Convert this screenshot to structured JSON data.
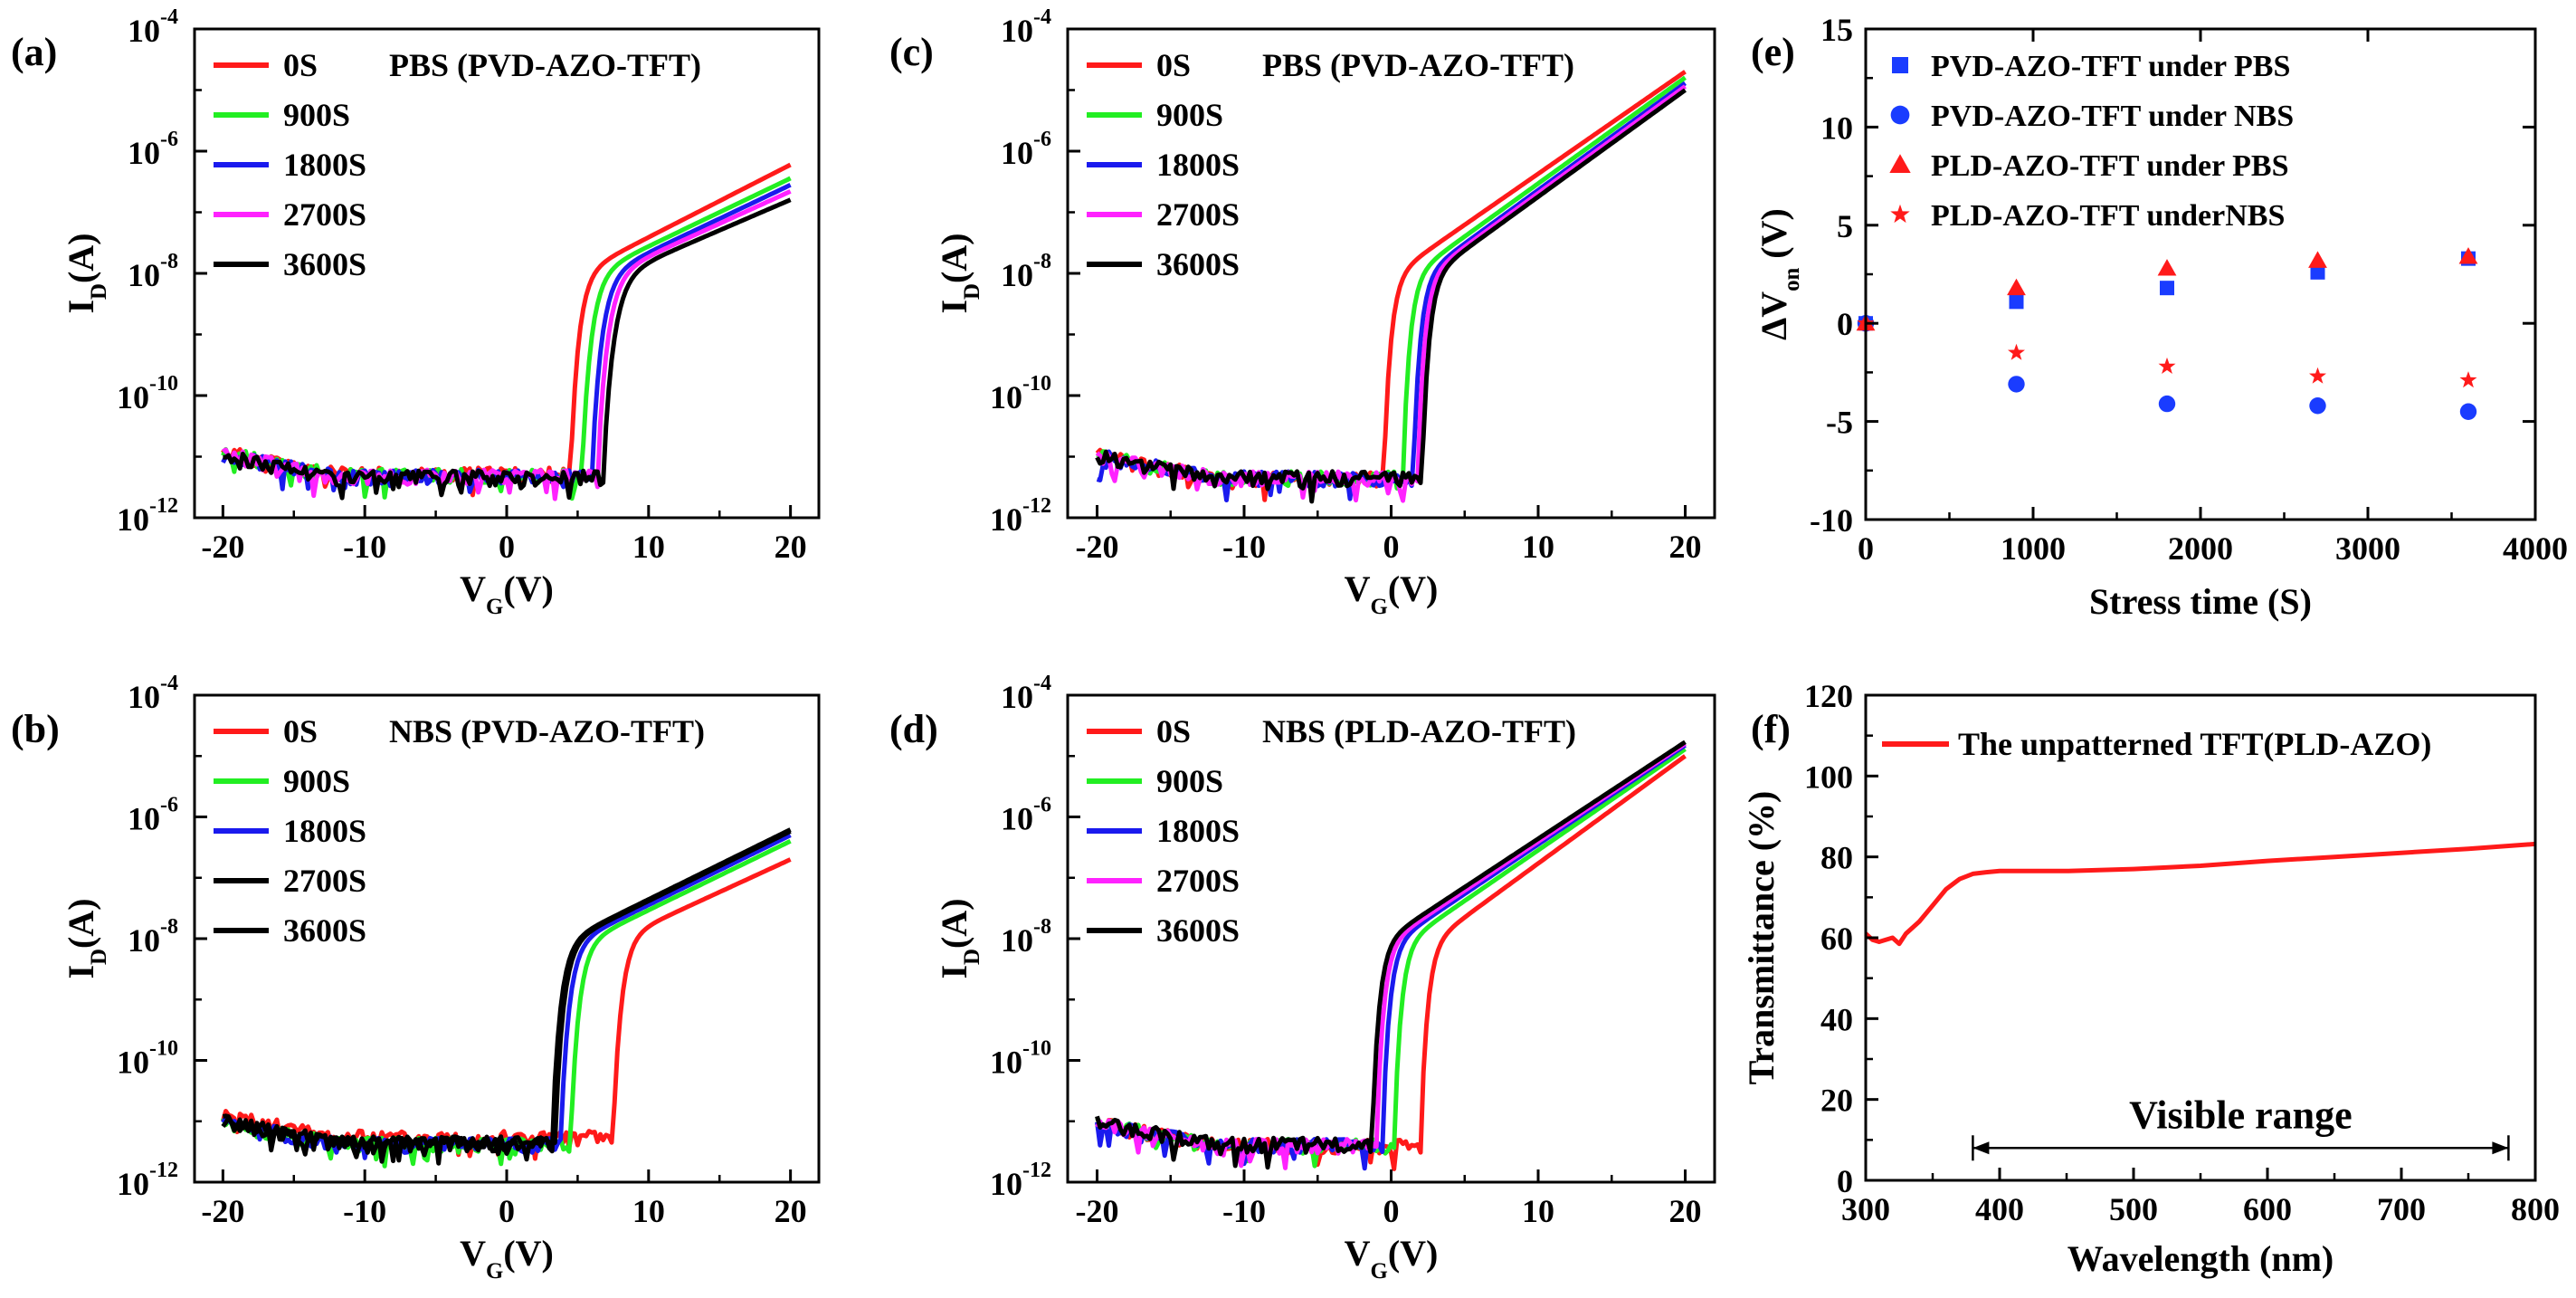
{
  "figure": {
    "panels": [
      {
        "id": "a",
        "label": "(a)",
        "chart_data": {
          "type": "line",
          "title": "PBS (PVD-AZO-TFT)",
          "xlabel": "V_G(V)",
          "ylabel": "I_D(A)",
          "xscale": "linear",
          "yscale": "log",
          "xlim": [
            -22,
            22
          ],
          "ylim": [
            1e-12,
            0.0001
          ],
          "xticks": [
            "-20",
            "-10",
            "0",
            "10",
            "20"
          ],
          "yticks": [
            "10^-12",
            "10^-10",
            "10^-8",
            "10^-6",
            "10^-4"
          ],
          "legend_position": "top-left",
          "series": [
            {
              "name": "0S",
              "color": "#ff1a1a",
              "von": 4.5,
              "off": 5.2e-12,
              "on20": 6e-07,
              "scale": 0.55
            },
            {
              "name": "900S",
              "color": "#22ee22",
              "von": 5.3,
              "off": 5e-12,
              "on20": 3.6e-07,
              "scale": 0.62
            },
            {
              "name": "1800S",
              "color": "#1a1aee",
              "von": 6.0,
              "off": 4.8e-12,
              "on20": 2.8e-07,
              "scale": 0.65
            },
            {
              "name": "2700S",
              "color": "#ff22ff",
              "von": 6.4,
              "off": 4.8e-12,
              "on20": 2.2e-07,
              "scale": 0.67
            },
            {
              "name": "3600S",
              "color": "#000000",
              "von": 6.8,
              "off": 4.6e-12,
              "on20": 1.6e-07,
              "scale": 0.7
            }
          ]
        }
      },
      {
        "id": "b",
        "label": "(b)",
        "chart_data": {
          "type": "line",
          "title": "NBS (PVD-AZO-TFT)",
          "xlabel": "V_G(V)",
          "ylabel": "I_D(A)",
          "xscale": "linear",
          "yscale": "log",
          "xlim": [
            -22,
            22
          ],
          "ylim": [
            1e-12,
            0.0001
          ],
          "xticks": [
            "-20",
            "-10",
            "0",
            "10",
            "20"
          ],
          "yticks": [
            "10^-12",
            "10^-10",
            "10^-8",
            "10^-6",
            "10^-4"
          ],
          "legend_position": "top-left",
          "series": [
            {
              "name": "0S",
              "color": "#ff1a1a",
              "von": 7.5,
              "off": 5.5e-12,
              "on20": 2e-07,
              "scale": 0.55
            },
            {
              "name": "900S",
              "color": "#22ee22",
              "von": 4.5,
              "off": 4.2e-12,
              "on20": 4e-07,
              "scale": 0.55
            },
            {
              "name": "1800S",
              "color": "#1a1aee",
              "von": 3.8,
              "off": 4.2e-12,
              "on20": 5e-07,
              "scale": 0.55
            },
            {
              "name": "2700S",
              "color": "#000000",
              "von": 3.4,
              "off": 4.4e-12,
              "on20": 5.8e-07,
              "scale": 0.55
            },
            {
              "name": "3600S",
              "color": "#000000",
              "von": 3.2,
              "off": 4.4e-12,
              "on20": 6.2e-07,
              "scale": 0.55
            }
          ]
        }
      },
      {
        "id": "c",
        "label": "(c)",
        "chart_data": {
          "type": "line",
          "title": "PBS (PVD-AZO-TFT)",
          "xlabel": "V_G(V)",
          "ylabel": "I_D(A)",
          "xscale": "linear",
          "yscale": "log",
          "xlim": [
            -22,
            22
          ],
          "ylim": [
            1e-12,
            0.0001
          ],
          "xticks": [
            "-20",
            "-10",
            "0",
            "10",
            "20"
          ],
          "yticks": [
            "10^-12",
            "10^-10",
            "10^-8",
            "10^-6",
            "10^-4"
          ],
          "legend_position": "top-left",
          "series": [
            {
              "name": "0S",
              "color": "#ff1a1a",
              "von": -0.5,
              "off": 4.5e-12,
              "on20": 2e-05,
              "scale": 0.45
            },
            {
              "name": "900S",
              "color": "#22ee22",
              "von": 0.8,
              "off": 4.5e-12,
              "on20": 1.6e-05,
              "scale": 0.45
            },
            {
              "name": "1800S",
              "color": "#1a1aee",
              "von": 1.5,
              "off": 4.5e-12,
              "on20": 1.3e-05,
              "scale": 0.45
            },
            {
              "name": "2700S",
              "color": "#ff22ff",
              "von": 1.8,
              "off": 4.5e-12,
              "on20": 1.15e-05,
              "scale": 0.45
            },
            {
              "name": "3600S",
              "color": "#000000",
              "von": 2.1,
              "off": 4.5e-12,
              "on20": 1e-05,
              "scale": 0.45
            }
          ]
        }
      },
      {
        "id": "d",
        "label": "(d)",
        "chart_data": {
          "type": "line",
          "title": "NBS (PLD-AZO-TFT)",
          "xlabel": "V_G(V)",
          "ylabel": "I_D(A)",
          "xscale": "linear",
          "yscale": "log",
          "xlim": [
            -22,
            22
          ],
          "ylim": [
            1e-12,
            0.0001
          ],
          "xticks": [
            "-20",
            "-10",
            "0",
            "10",
            "20"
          ],
          "yticks": [
            "10^-12",
            "10^-10",
            "10^-8",
            "10^-6",
            "10^-4"
          ],
          "legend_position": "top-left",
          "series": [
            {
              "name": "0S",
              "color": "#ff1a1a",
              "von": 2.0,
              "off": 4e-12,
              "on20": 1e-05,
              "scale": 0.45
            },
            {
              "name": "900S",
              "color": "#22ee22",
              "von": 0.2,
              "off": 4e-12,
              "on20": 1.3e-05,
              "scale": 0.45
            },
            {
              "name": "1800S",
              "color": "#1a1aee",
              "von": -0.6,
              "off": 4e-12,
              "on20": 1.5e-05,
              "scale": 0.45
            },
            {
              "name": "2700S",
              "color": "#ff22ff",
              "von": -1.0,
              "off": 4e-12,
              "on20": 1.6e-05,
              "scale": 0.45
            },
            {
              "name": "3600S",
              "color": "#000000",
              "von": -1.3,
              "off": 4.2e-12,
              "on20": 1.7e-05,
              "scale": 0.45
            }
          ]
        }
      },
      {
        "id": "e",
        "label": "(e)",
        "chart_data": {
          "type": "scatter",
          "xlabel": "Stress time (S)",
          "ylabel": "ΔV_on (V)",
          "xlim": [
            0,
            4000
          ],
          "ylim": [
            -10,
            15
          ],
          "xticks": [
            0,
            1000,
            2000,
            3000,
            4000
          ],
          "yticks": [
            -10,
            -5,
            0,
            5,
            10,
            15
          ],
          "legend_position": "top-left",
          "series": [
            {
              "name": "PVD-AZO-TFT under PBS",
              "marker": "square",
              "color": "#1a3cff",
              "x": [
                0,
                900,
                1800,
                2700,
                3600
              ],
              "y": [
                0,
                1.1,
                1.8,
                2.6,
                3.3
              ]
            },
            {
              "name": "PVD-AZO-TFT under NBS",
              "marker": "circle",
              "color": "#1a3cff",
              "x": [
                0,
                900,
                1800,
                2700,
                3600
              ],
              "y": [
                0,
                -3.1,
                -4.1,
                -4.2,
                -4.5
              ]
            },
            {
              "name": "PLD-AZO-TFT under PBS",
              "marker": "triangle",
              "color": "#ff1a1a",
              "x": [
                0,
                900,
                1800,
                2700,
                3600
              ],
              "y": [
                0,
                1.8,
                2.8,
                3.2,
                3.4
              ]
            },
            {
              "name": "PLD-AZO-TFT underNBS",
              "marker": "star",
              "color": "#ff1a1a",
              "x": [
                0,
                900,
                1800,
                2700,
                3600
              ],
              "y": [
                0,
                -1.5,
                -2.2,
                -2.7,
                -2.9
              ]
            }
          ]
        }
      },
      {
        "id": "f",
        "label": "(f)",
        "chart_data": {
          "type": "line",
          "xlabel": "Wavelength (nm)",
          "ylabel": "Transmittance (%)",
          "xlim": [
            300,
            800
          ],
          "ylim": [
            0,
            120
          ],
          "xticks": [
            300,
            400,
            500,
            600,
            700,
            800
          ],
          "yticks": [
            0,
            20,
            40,
            60,
            80,
            100,
            120
          ],
          "legend_position": "top-left",
          "annotation": {
            "text": "Visible  range",
            "x_start": 380,
            "x_end": 780,
            "y": 8
          },
          "series": [
            {
              "name": "The unpatterned TFT(PLD-AZO)",
              "color": "#ff1a1a",
              "x": [
                300,
                305,
                310,
                315,
                320,
                325,
                330,
                340,
                350,
                360,
                370,
                380,
                390,
                400,
                420,
                450,
                500,
                550,
                600,
                650,
                700,
                750,
                800
              ],
              "y": [
                61,
                59.5,
                59,
                59.5,
                60,
                58.5,
                61,
                64,
                68,
                72,
                74.5,
                75.8,
                76.2,
                76.5,
                76.5,
                76.5,
                77,
                77.8,
                79,
                80,
                81,
                82,
                83.2
              ]
            }
          ]
        }
      }
    ]
  }
}
